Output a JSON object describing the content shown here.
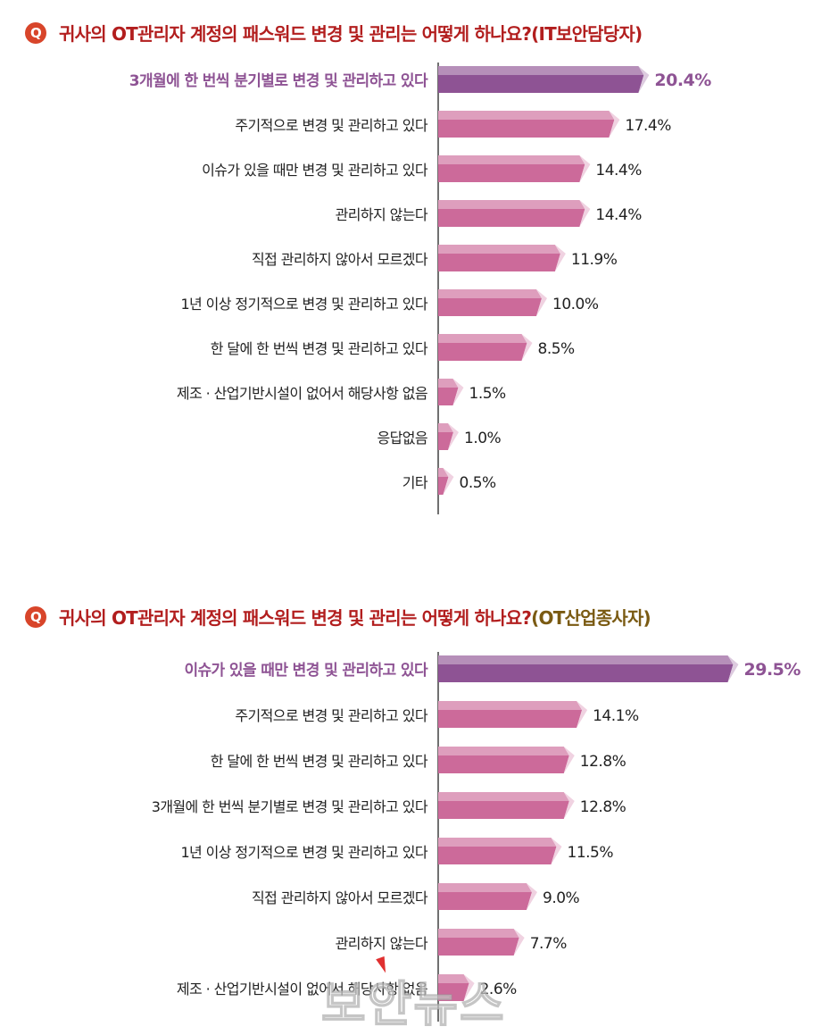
{
  "chart_data": [
    {
      "type": "bar",
      "title": "귀사의 OT관리자 계정의 패스워드 변경 및 관리는 어떻게 하나요?",
      "title_suffix": "(IT보안담당자)",
      "title_icon": "Q",
      "unit": "%",
      "highlight_color": "#8e5394",
      "bar_color": "#cc6a9a",
      "categories": [
        "3개월에 한 번씩 분기별로 변경 및 관리하고 있다",
        "주기적으로 변경 및 관리하고 있다",
        "이슈가 있을 때만 변경 및 관리하고 있다",
        "관리하지 않는다",
        "직접 관리하지 않아서 모르겠다",
        "1년 이상 정기적으로 변경 및 관리하고 있다",
        "한 달에 한 번씩 변경 및 관리하고 있다",
        "제조 · 산업기반시설이 없어서 해당사항 없음",
        "응답없음",
        "기타"
      ],
      "values": [
        20.4,
        17.4,
        14.4,
        14.4,
        11.9,
        10.0,
        8.5,
        1.5,
        1.0,
        0.5
      ],
      "value_labels": [
        "20.4%",
        "17.4%",
        "14.4%",
        "14.4%",
        "11.9%",
        "10.0%",
        "8.5%",
        "1.5%",
        "1.0%",
        "0.5%"
      ],
      "highlight_index": 0
    },
    {
      "type": "bar",
      "title": "귀사의 OT관리자 계정의 패스워드 변경 및 관리는 어떻게 하나요?",
      "title_suffix": "(OT산업종사자)",
      "title_icon": "Q",
      "unit": "%",
      "highlight_color": "#8e5394",
      "bar_color": "#cc6a9a",
      "categories": [
        "이슈가 있을 때만 변경 및 관리하고 있다",
        "주기적으로 변경 및 관리하고 있다",
        "한 달에 한 번씩 변경 및 관리하고 있다",
        "3개월에 한 번씩 분기별로 변경 및 관리하고 있다",
        "1년 이상 정기적으로 변경 및 관리하고 있다",
        "직접 관리하지 않아서 모르겠다",
        "관리하지 않는다",
        "제조 · 산업기반시설이 없어서 해당사항 없음"
      ],
      "values": [
        29.5,
        14.1,
        12.8,
        12.8,
        11.5,
        9.0,
        7.7,
        2.6
      ],
      "value_labels": [
        "29.5%",
        "14.1%",
        "12.8%",
        "12.8%",
        "11.5%",
        "9.0%",
        "7.7%",
        "2.6%"
      ],
      "highlight_index": 0
    }
  ],
  "watermark": "보안뉴스"
}
